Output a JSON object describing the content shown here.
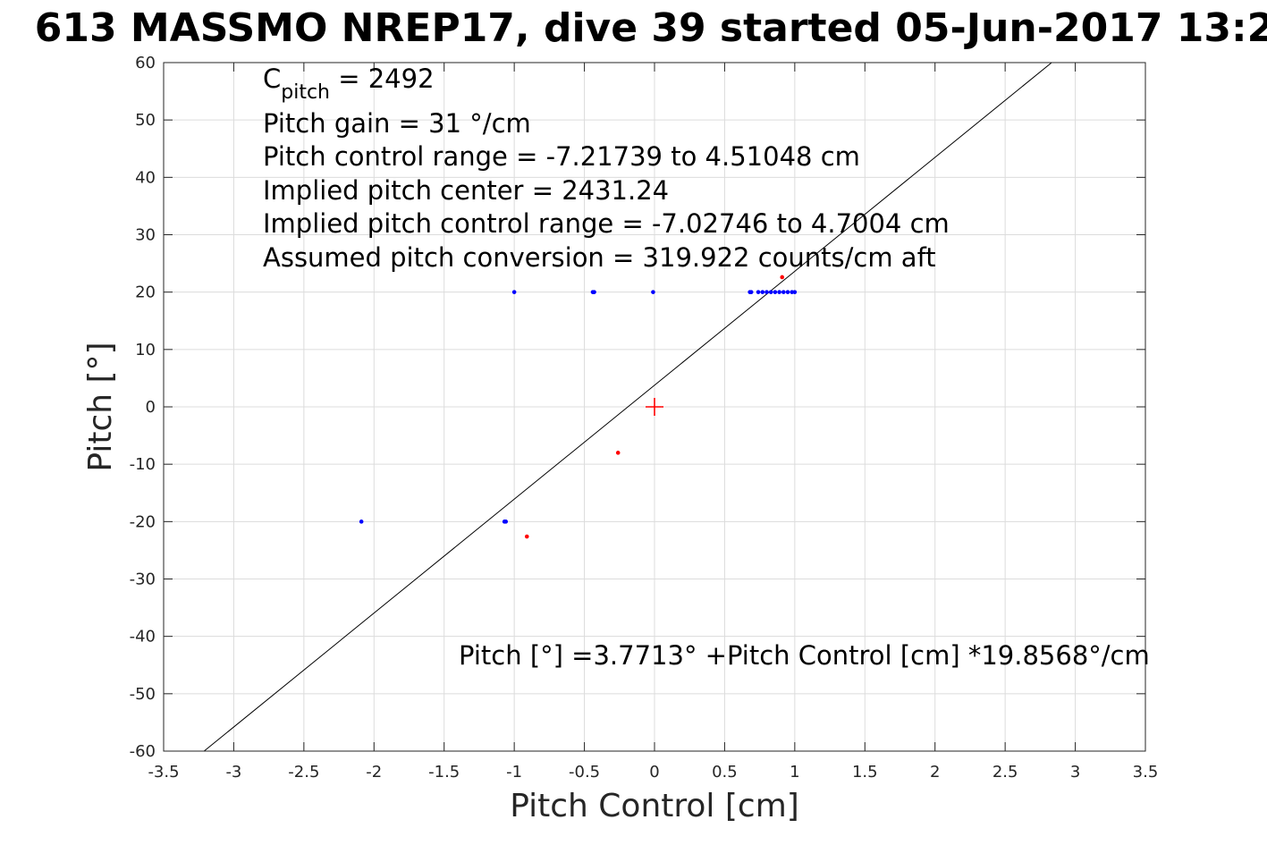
{
  "chart_data": {
    "type": "scatter",
    "title": "613 MASSMO NREP17, dive 39 started 05-Jun-2017 13:2",
    "xlabel": "Pitch Control [cm]",
    "ylabel": "Pitch [°]",
    "xlim": [
      -3.5,
      3.5
    ],
    "ylim": [
      -60,
      60
    ],
    "xticks": [
      -3.5,
      -3,
      -2.5,
      -2,
      -1.5,
      -1,
      -0.5,
      0,
      0.5,
      1,
      1.5,
      2,
      2.5,
      3,
      3.5
    ],
    "xtick_labels": [
      "-3.5",
      "-3",
      "-2.5",
      "-2",
      "-1.5",
      "-1",
      "-0.5",
      "0",
      "0.5",
      "1",
      "1.5",
      "2",
      "2.5",
      "3",
      "3.5"
    ],
    "yticks": [
      -60,
      -50,
      -40,
      -30,
      -20,
      -10,
      0,
      10,
      20,
      30,
      40,
      50,
      60
    ],
    "ytick_labels": [
      "-60",
      "-50",
      "-40",
      "-30",
      "-20",
      "-10",
      "0",
      "10",
      "20",
      "30",
      "40",
      "50",
      "60"
    ],
    "grid": true,
    "series": [
      {
        "color": "#0000ff",
        "marker": "dot",
        "points": [
          [
            -2.09,
            -20
          ],
          [
            -1.07,
            -20
          ],
          [
            -1.06,
            -20
          ],
          [
            -1.0,
            20
          ],
          [
            -0.44,
            20
          ],
          [
            -0.43,
            20
          ],
          [
            -0.01,
            20
          ],
          [
            0.68,
            20
          ],
          [
            0.69,
            20
          ],
          [
            0.74,
            20
          ],
          [
            0.77,
            20
          ],
          [
            0.8,
            20
          ],
          [
            0.83,
            20
          ],
          [
            0.86,
            20
          ],
          [
            0.89,
            20
          ],
          [
            0.92,
            20
          ],
          [
            0.95,
            20
          ],
          [
            0.98,
            20
          ],
          [
            1.0,
            20
          ]
        ]
      },
      {
        "color": "#ff0000",
        "marker": "dot",
        "points": [
          [
            -0.91,
            -22.6
          ],
          [
            -0.26,
            -8
          ],
          [
            0.91,
            22.6
          ]
        ]
      },
      {
        "color": "#ff0000",
        "marker": "plus",
        "points": [
          [
            0,
            0
          ]
        ]
      }
    ],
    "fit_line": {
      "color": "#000000",
      "intercept": 3.7713,
      "slope": 19.8568
    },
    "annotations": {
      "cpitch_main": "C",
      "cpitch_sub": "pitch",
      "cpitch_value": " = 2492",
      "lines": [
        "Pitch gain = 31 °/cm",
        "Pitch control range = -7.21739 to 4.51048 cm",
        "Implied pitch center = 2431.24",
        "Implied pitch control range = -7.02746 to 4.7004 cm",
        "Assumed pitch conversion = 319.922 counts/cm aft"
      ],
      "equation": "Pitch [°] =3.7713° +Pitch Control [cm] *19.8568°/cm"
    }
  }
}
